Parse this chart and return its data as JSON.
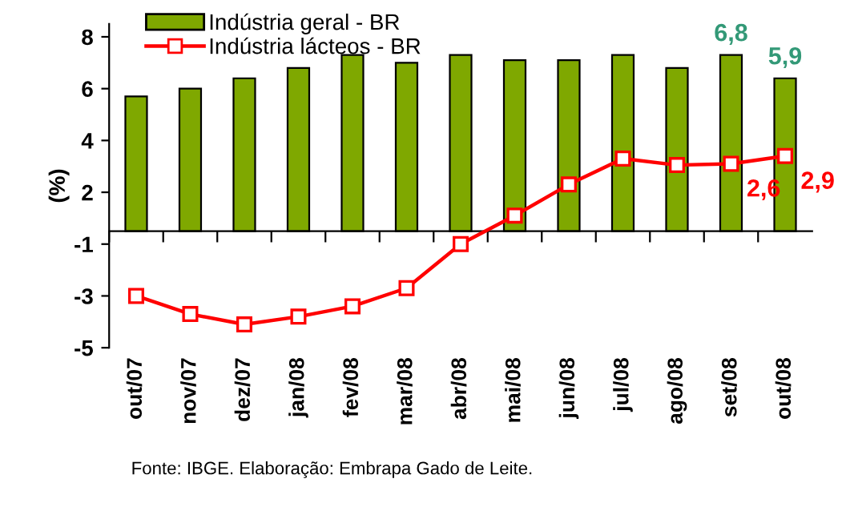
{
  "chart_data": {
    "type": "bar",
    "categories": [
      "out/07",
      "nov/07",
      "dez/07",
      "jan/08",
      "fev/08",
      "mar/08",
      "abr/08",
      "mai/08",
      "jun/08",
      "jul/08",
      "ago/08",
      "set/08",
      "out/08"
    ],
    "series": [
      {
        "name": "Indústria geral - BR",
        "color": "#7fa800",
        "values": [
          5.2,
          5.5,
          5.9,
          6.3,
          6.8,
          6.5,
          6.8,
          6.6,
          6.6,
          6.8,
          6.3,
          6.8,
          5.9
        ],
        "value_labels": [
          null,
          null,
          null,
          null,
          null,
          null,
          null,
          null,
          null,
          null,
          null,
          "6,8",
          "5,9"
        ]
      },
      {
        "name": "Indústria lácteos - BR",
        "type": "line",
        "color": "#ff0000",
        "marker": "square",
        "values": [
          -2.5,
          -3.2,
          -3.6,
          -3.3,
          -2.9,
          -2.2,
          -0.5,
          0.6,
          1.8,
          2.8,
          2.55,
          2.6,
          2.9
        ],
        "value_labels": [
          null,
          null,
          null,
          null,
          null,
          null,
          null,
          null,
          null,
          null,
          null,
          "2,6",
          "2,9"
        ]
      }
    ],
    "ylabel": "(%)",
    "ylim": [
      -4.5,
      8
    ],
    "yticks": [
      {
        "value": 7.5,
        "label": "8"
      },
      {
        "value": 5.5,
        "label": "6"
      },
      {
        "value": 3.5,
        "label": "4"
      },
      {
        "value": 1.5,
        "label": "2"
      },
      {
        "value": -0.5,
        "label": "-1"
      },
      {
        "value": -2.5,
        "label": "-3"
      },
      {
        "value": -4.5,
        "label": "-5"
      }
    ],
    "legend": "top left",
    "grid": false,
    "annotations": [
      "Fonte: IBGE. Elaboração: Embrapa Gado de Leite."
    ]
  }
}
